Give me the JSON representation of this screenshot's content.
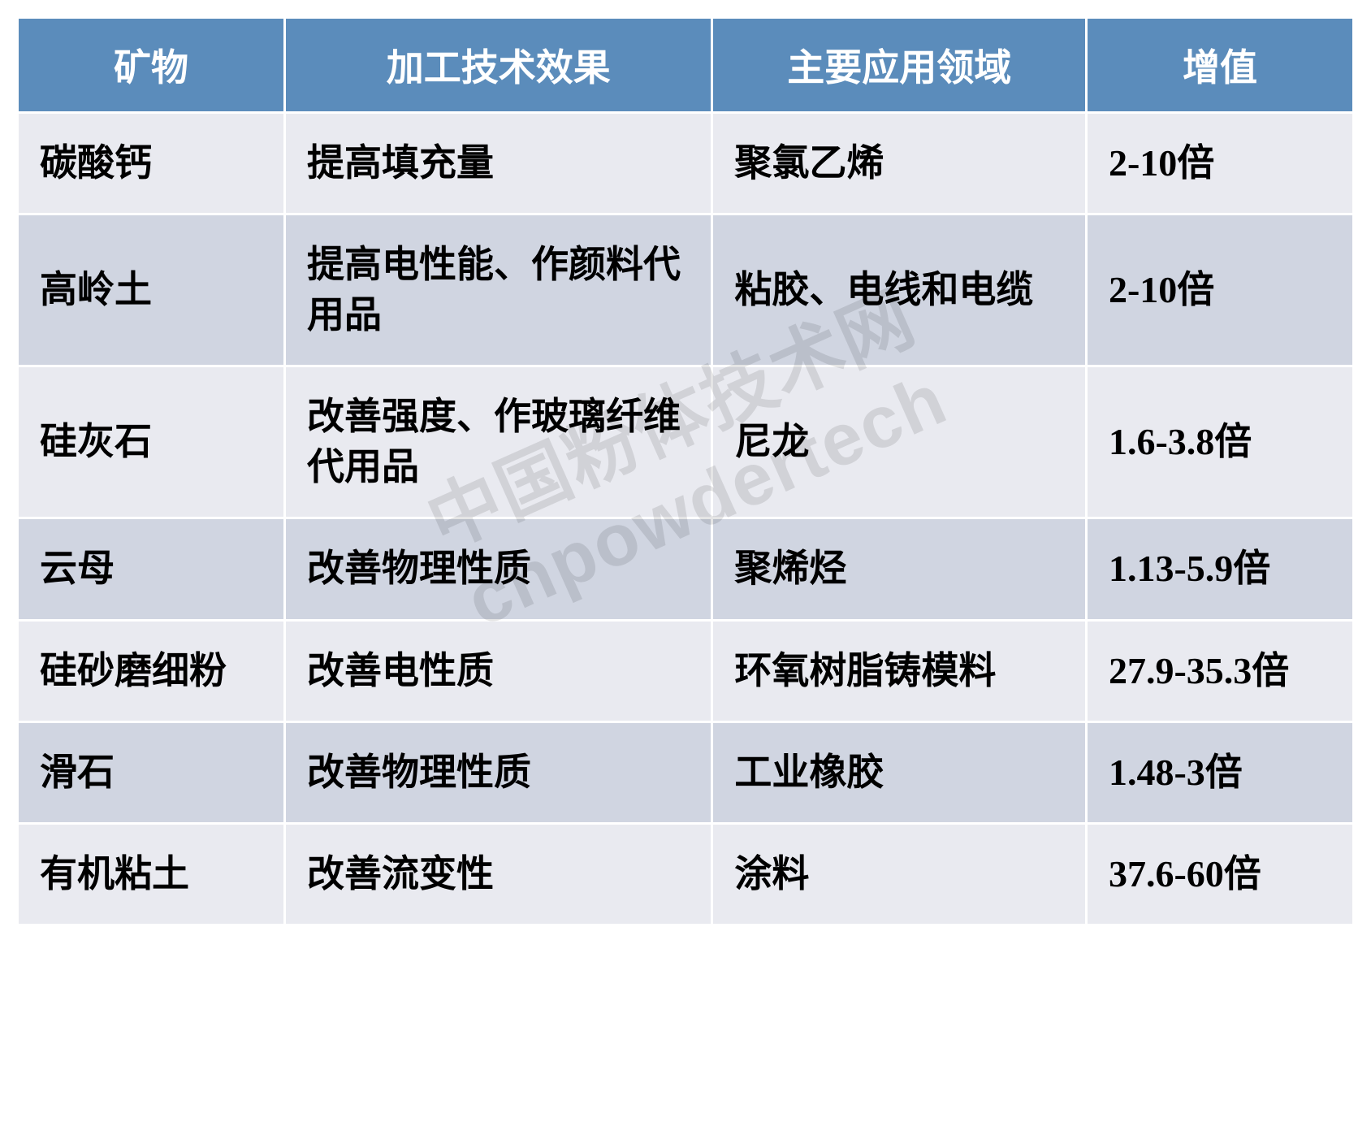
{
  "table": {
    "header_bg": "#5b8cbb",
    "header_border": "#ffffff",
    "header_text_color": "#ffffff",
    "row_colors": [
      "#e9eaf0",
      "#d0d5e1"
    ],
    "cell_border": "#ffffff",
    "cell_text_color": "#000000",
    "header_fontsize": 46,
    "cell_fontsize": 46,
    "col_widths": [
      "20%",
      "32%",
      "28%",
      "20%"
    ],
    "columns": [
      "矿物",
      "加工技术效果",
      "主要应用领域",
      "增值"
    ],
    "rows": [
      [
        "碳酸钙",
        "提高填充量",
        "聚氯乙烯",
        "2-10倍"
      ],
      [
        "高岭土",
        "提高电性能、作颜料代用品",
        "粘胶、电线和电缆",
        "2-10倍"
      ],
      [
        "硅灰石",
        "改善强度、作玻璃纤维代用品",
        "尼龙",
        "1.6-3.8倍"
      ],
      [
        "云母",
        "改善物理性质",
        "聚烯烃",
        "1.13-5.9倍"
      ],
      [
        "硅砂磨细粉",
        "改善电性质",
        "环氧树脂铸模料",
        "27.9-35.3倍"
      ],
      [
        "滑石",
        "改善物理性质",
        "工业橡胶",
        "1.48-3倍"
      ],
      [
        "有机粘土",
        "改善流变性",
        "涂料",
        "37.6-60倍"
      ]
    ]
  },
  "watermark": {
    "line1": "中国粉体技术网",
    "line2": "cnpowdertech",
    "color": "rgba(0,0,0,0.1)",
    "fontsize": 90
  }
}
